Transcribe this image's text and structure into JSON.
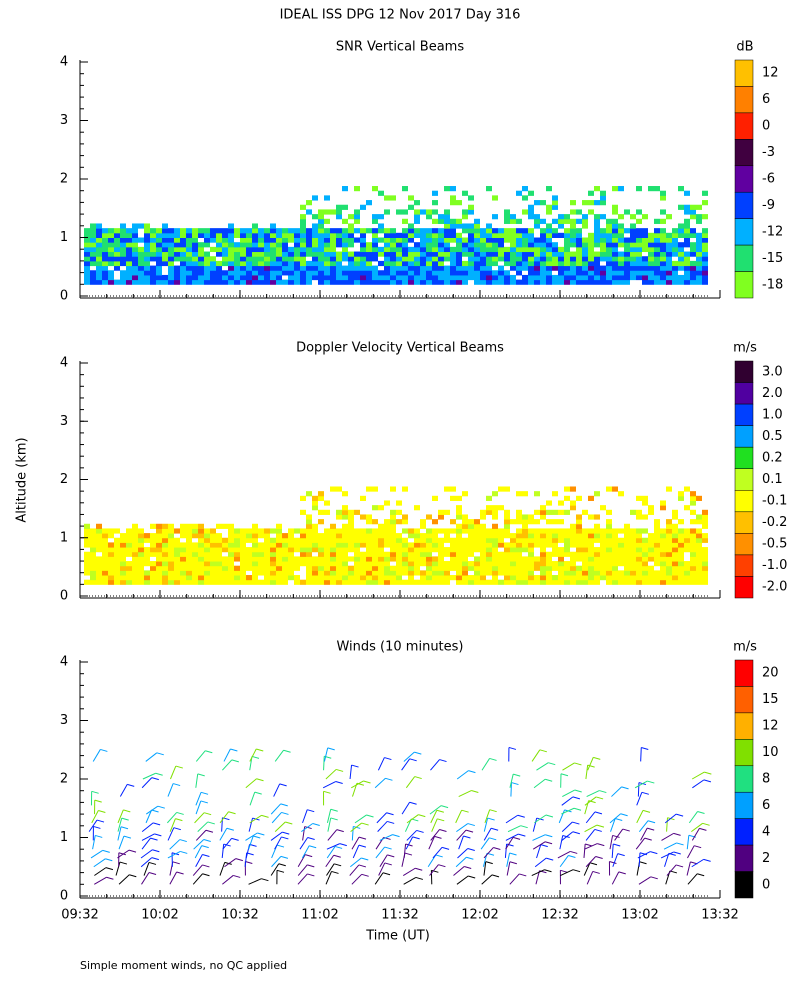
{
  "title": "IDEAL ISS DPG  12 Nov 2017 Day 316",
  "y_axis_label": "Altitude (km)",
  "x_axis_label": "Time (UT)",
  "footnote": "Simple moment winds, no QC applied",
  "chart_data": [
    {
      "type": "snr",
      "title": "SNR Vertical Beams",
      "ylim": [
        0,
        4
      ],
      "yticks": [
        0,
        1,
        2,
        3,
        4
      ],
      "xlim": [
        "09:32",
        "13:32"
      ],
      "colorbar": {
        "unit": "dB",
        "labels": [
          "12",
          "6",
          "0",
          "-3",
          "-6",
          "-9",
          "-12",
          "-15",
          "-18"
        ],
        "colors": [
          "#ffc000",
          "#ff8000",
          "#ff2000",
          "#400040",
          "#6000a0",
          "#0040ff",
          "#00b0ff",
          "#20e070",
          "#80ff20"
        ]
      }
    },
    {
      "type": "velocity",
      "title": "Doppler Velocity Vertical Beams",
      "ylim": [
        0,
        4
      ],
      "yticks": [
        0,
        1,
        2,
        3,
        4
      ],
      "xlim": [
        "09:32",
        "13:32"
      ],
      "colorbar": {
        "unit": "m/s",
        "labels": [
          "3.0",
          "2.0",
          "1.0",
          "0.5",
          "0.2",
          "0.1",
          "-0.1",
          "-0.2",
          "-0.5",
          "-1.0",
          "-2.0"
        ],
        "colors": [
          "#300030",
          "#5000a0",
          "#0040ff",
          "#00a0ff",
          "#20e020",
          "#c0ff20",
          "#ffff00",
          "#ffc000",
          "#ff9000",
          "#ff4000",
          "#ff0000"
        ]
      }
    },
    {
      "type": "winds",
      "title": "Winds (10 minutes)",
      "ylim": [
        0,
        4
      ],
      "yticks": [
        0,
        1,
        2,
        3,
        4
      ],
      "xlim": [
        "09:32",
        "13:32"
      ],
      "xticks": [
        "09:32",
        "10:02",
        "10:32",
        "11:02",
        "11:32",
        "12:02",
        "12:32",
        "13:02",
        "13:32"
      ],
      "colorbar": {
        "unit": "m/s",
        "labels": [
          "20",
          "15",
          "12",
          "10",
          "8",
          "6",
          "4",
          "2",
          "0"
        ],
        "colors": [
          "#ff0000",
          "#ff6000",
          "#ffb000",
          "#80e000",
          "#20e080",
          "#00a0ff",
          "#0020ff",
          "#500080",
          "#000000"
        ]
      }
    }
  ]
}
